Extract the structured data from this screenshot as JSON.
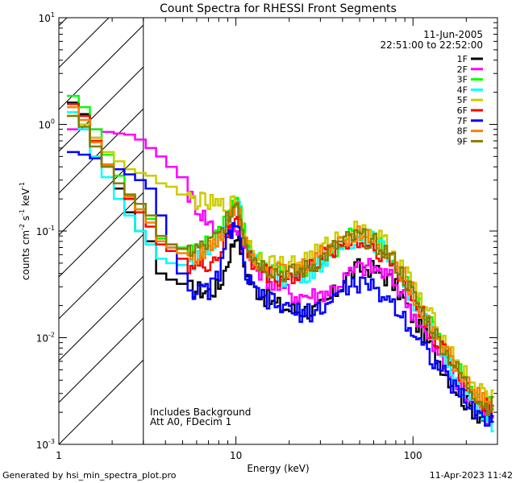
{
  "chart_data": {
    "type": "line",
    "title": "Count Spectra for RHESSI Front Segments",
    "xlabel": "Energy (keV)",
    "ylabel_main": "counts cm",
    "ylabel_exp1": "-2",
    "ylabel_s": " s",
    "ylabel_exp2": "-1",
    "ylabel_kev": " keV",
    "ylabel_exp3": "-1",
    "x_scale": "log",
    "y_scale": "log",
    "xlim": [
      1,
      300
    ],
    "ylim": [
      0.001,
      10
    ],
    "x_major_ticks": [
      1,
      10,
      100
    ],
    "x_major_labels": [
      "1",
      "10",
      "100"
    ],
    "y_major_ticks": [
      0.001,
      0.01,
      0.1,
      1,
      10
    ],
    "y_major_labels": [
      {
        "base": "10",
        "exp": "-3"
      },
      {
        "base": "10",
        "exp": "-2"
      },
      {
        "base": "10",
        "exp": "-1"
      },
      {
        "base": "10",
        "exp": "0"
      },
      {
        "base": "10",
        "exp": "1"
      }
    ],
    "hatched_region": {
      "xmin": 1,
      "xmax": 3
    },
    "date": "11-Jun-2005",
    "time_range": "22:51:00 to 22:52:00",
    "annotations": [
      "Includes Background",
      "Att A0, FDecim 1"
    ],
    "x": [
      1.2,
      1.4,
      1.6,
      1.9,
      2.2,
      2.5,
      2.9,
      3.3,
      3.8,
      4.3,
      5.0,
      5.7,
      6.5,
      7.4,
      8.5,
      9.7,
      10.5,
      11.5,
      13,
      15,
      17,
      20,
      23,
      26,
      30,
      34,
      39,
      45,
      52,
      60,
      69,
      79,
      91,
      104,
      120,
      138,
      158,
      181,
      208,
      240,
      270
    ],
    "series": [
      {
        "name": "1F",
        "color": "#000000",
        "values": [
          1.6,
          1.25,
          0.75,
          0.42,
          0.25,
          0.15,
          0.1,
          0.08,
          0.04,
          0.035,
          0.032,
          0.029,
          0.028,
          0.027,
          0.03,
          0.06,
          0.1,
          0.048,
          0.03,
          0.025,
          0.021,
          0.019,
          0.018,
          0.018,
          0.018,
          0.021,
          0.027,
          0.038,
          0.045,
          0.045,
          0.04,
          0.034,
          0.025,
          0.016,
          0.011,
          0.0075,
          0.005,
          0.0035,
          0.0025,
          0.002,
          0.0017
        ]
      },
      {
        "name": "2F",
        "color": "#ff00ff",
        "values": [
          0.9,
          0.9,
          0.9,
          0.85,
          0.82,
          0.8,
          0.72,
          0.6,
          0.5,
          0.4,
          0.32,
          0.22,
          0.16,
          0.12,
          0.1,
          0.1,
          0.11,
          0.07,
          0.05,
          0.04,
          0.032,
          0.028,
          0.025,
          0.025,
          0.025,
          0.027,
          0.03,
          0.038,
          0.045,
          0.046,
          0.042,
          0.036,
          0.027,
          0.018,
          0.012,
          0.008,
          0.0055,
          0.0038,
          0.0028,
          0.0022,
          0.0018
        ]
      },
      {
        "name": "3F",
        "color": "#00ff00",
        "values": [
          1.85,
          1.45,
          0.9,
          0.52,
          0.33,
          0.22,
          0.16,
          0.13,
          0.085,
          0.075,
          0.07,
          0.065,
          0.07,
          0.075,
          0.09,
          0.15,
          0.24,
          0.1,
          0.06,
          0.05,
          0.043,
          0.04,
          0.04,
          0.042,
          0.048,
          0.057,
          0.07,
          0.085,
          0.095,
          0.09,
          0.078,
          0.06,
          0.042,
          0.027,
          0.018,
          0.012,
          0.008,
          0.0055,
          0.004,
          0.003,
          0.0024
        ]
      },
      {
        "name": "4F",
        "color": "#00ffff",
        "values": [
          1.3,
          0.9,
          0.5,
          0.32,
          0.2,
          0.14,
          0.1,
          0.075,
          0.055,
          0.05,
          0.048,
          0.05,
          0.055,
          0.065,
          0.08,
          0.14,
          0.2,
          0.09,
          0.055,
          0.045,
          0.04,
          0.037,
          0.037,
          0.04,
          0.046,
          0.055,
          0.066,
          0.08,
          0.088,
          0.085,
          0.072,
          0.055,
          0.038,
          0.024,
          0.016,
          0.01,
          0.0068,
          0.0046,
          0.0032,
          0.0022,
          0.0016
        ]
      },
      {
        "name": "5F",
        "color": "#cccc00",
        "values": [
          1.2,
          1.0,
          0.75,
          0.55,
          0.45,
          0.38,
          0.35,
          0.33,
          0.28,
          0.26,
          0.22,
          0.2,
          0.19,
          0.18,
          0.17,
          0.17,
          0.19,
          0.1,
          0.065,
          0.055,
          0.05,
          0.048,
          0.05,
          0.055,
          0.062,
          0.072,
          0.085,
          0.1,
          0.105,
          0.098,
          0.085,
          0.068,
          0.048,
          0.032,
          0.021,
          0.014,
          0.0095,
          0.0065,
          0.0045,
          0.0034,
          0.0028
        ]
      },
      {
        "name": "6F",
        "color": "#ff0000",
        "values": [
          1.55,
          1.2,
          0.7,
          0.42,
          0.28,
          0.2,
          0.15,
          0.11,
          0.075,
          0.065,
          0.055,
          0.048,
          0.046,
          0.05,
          0.06,
          0.1,
          0.15,
          0.075,
          0.05,
          0.042,
          0.038,
          0.036,
          0.038,
          0.042,
          0.05,
          0.06,
          0.072,
          0.078,
          0.08,
          0.074,
          0.064,
          0.05,
          0.036,
          0.024,
          0.016,
          0.011,
          0.0075,
          0.0052,
          0.0037,
          0.0028,
          0.0022
        ]
      },
      {
        "name": "7F",
        "color": "#0000ff",
        "values": [
          0.55,
          0.52,
          0.48,
          0.42,
          0.38,
          0.34,
          0.3,
          0.25,
          0.14,
          0.07,
          0.04,
          0.03,
          0.026,
          0.028,
          0.04,
          0.1,
          0.12,
          0.045,
          0.028,
          0.024,
          0.021,
          0.019,
          0.017,
          0.017,
          0.018,
          0.02,
          0.025,
          0.03,
          0.032,
          0.03,
          0.026,
          0.022,
          0.017,
          0.012,
          0.0085,
          0.0062,
          0.0045,
          0.0034,
          0.0026,
          0.002,
          0.0017
        ]
      },
      {
        "name": "8F",
        "color": "#ff8000",
        "values": [
          1.45,
          1.1,
          0.68,
          0.42,
          0.28,
          0.21,
          0.16,
          0.12,
          0.08,
          0.07,
          0.062,
          0.058,
          0.06,
          0.068,
          0.082,
          0.14,
          0.2,
          0.09,
          0.058,
          0.048,
          0.043,
          0.041,
          0.042,
          0.047,
          0.055,
          0.066,
          0.08,
          0.09,
          0.094,
          0.088,
          0.076,
          0.058,
          0.041,
          0.027,
          0.018,
          0.012,
          0.0082,
          0.0056,
          0.004,
          0.003,
          0.0024
        ]
      },
      {
        "name": "9F",
        "color": "#808000",
        "values": [
          1.2,
          0.95,
          0.62,
          0.4,
          0.28,
          0.22,
          0.18,
          0.14,
          0.09,
          0.075,
          0.068,
          0.065,
          0.068,
          0.075,
          0.09,
          0.15,
          0.19,
          0.095,
          0.058,
          0.048,
          0.043,
          0.04,
          0.04,
          0.044,
          0.05,
          0.06,
          0.072,
          0.082,
          0.088,
          0.082,
          0.072,
          0.057,
          0.04,
          0.026,
          0.017,
          0.0115,
          0.0078,
          0.0054,
          0.0038,
          0.0029,
          0.0023
        ]
      }
    ]
  },
  "footer": {
    "generated_by": "Generated by hsi_min_spectra_plot.pro",
    "timestamp": "11-Apr-2023 11:42"
  }
}
